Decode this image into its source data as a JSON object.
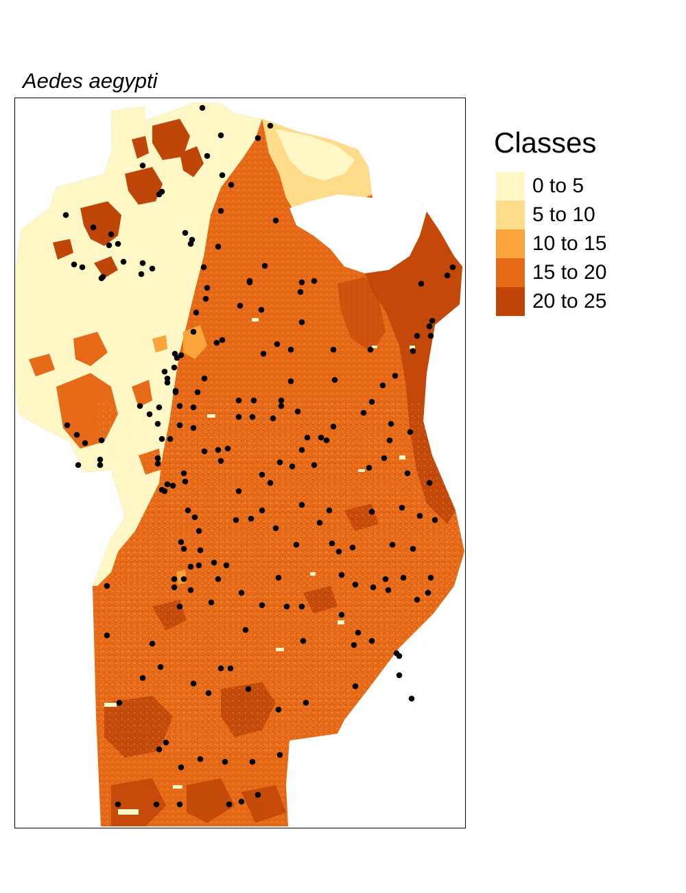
{
  "title": "Aedes aegypti",
  "legend": {
    "title": "Classes",
    "items": [
      {
        "label": "0 to 5",
        "color": "#FFF7C5"
      },
      {
        "label": "5 to 10",
        "color": "#FEDC8A"
      },
      {
        "label": "10 to 15",
        "color": "#FBA43A"
      },
      {
        "label": "15 to 20",
        "color": "#E66A17"
      },
      {
        "label": "20 to 25",
        "color": "#BF4508"
      }
    ]
  },
  "colors": {
    "points": "#000000",
    "frame": "#000000",
    "no_data": "#FFFFFF"
  }
}
